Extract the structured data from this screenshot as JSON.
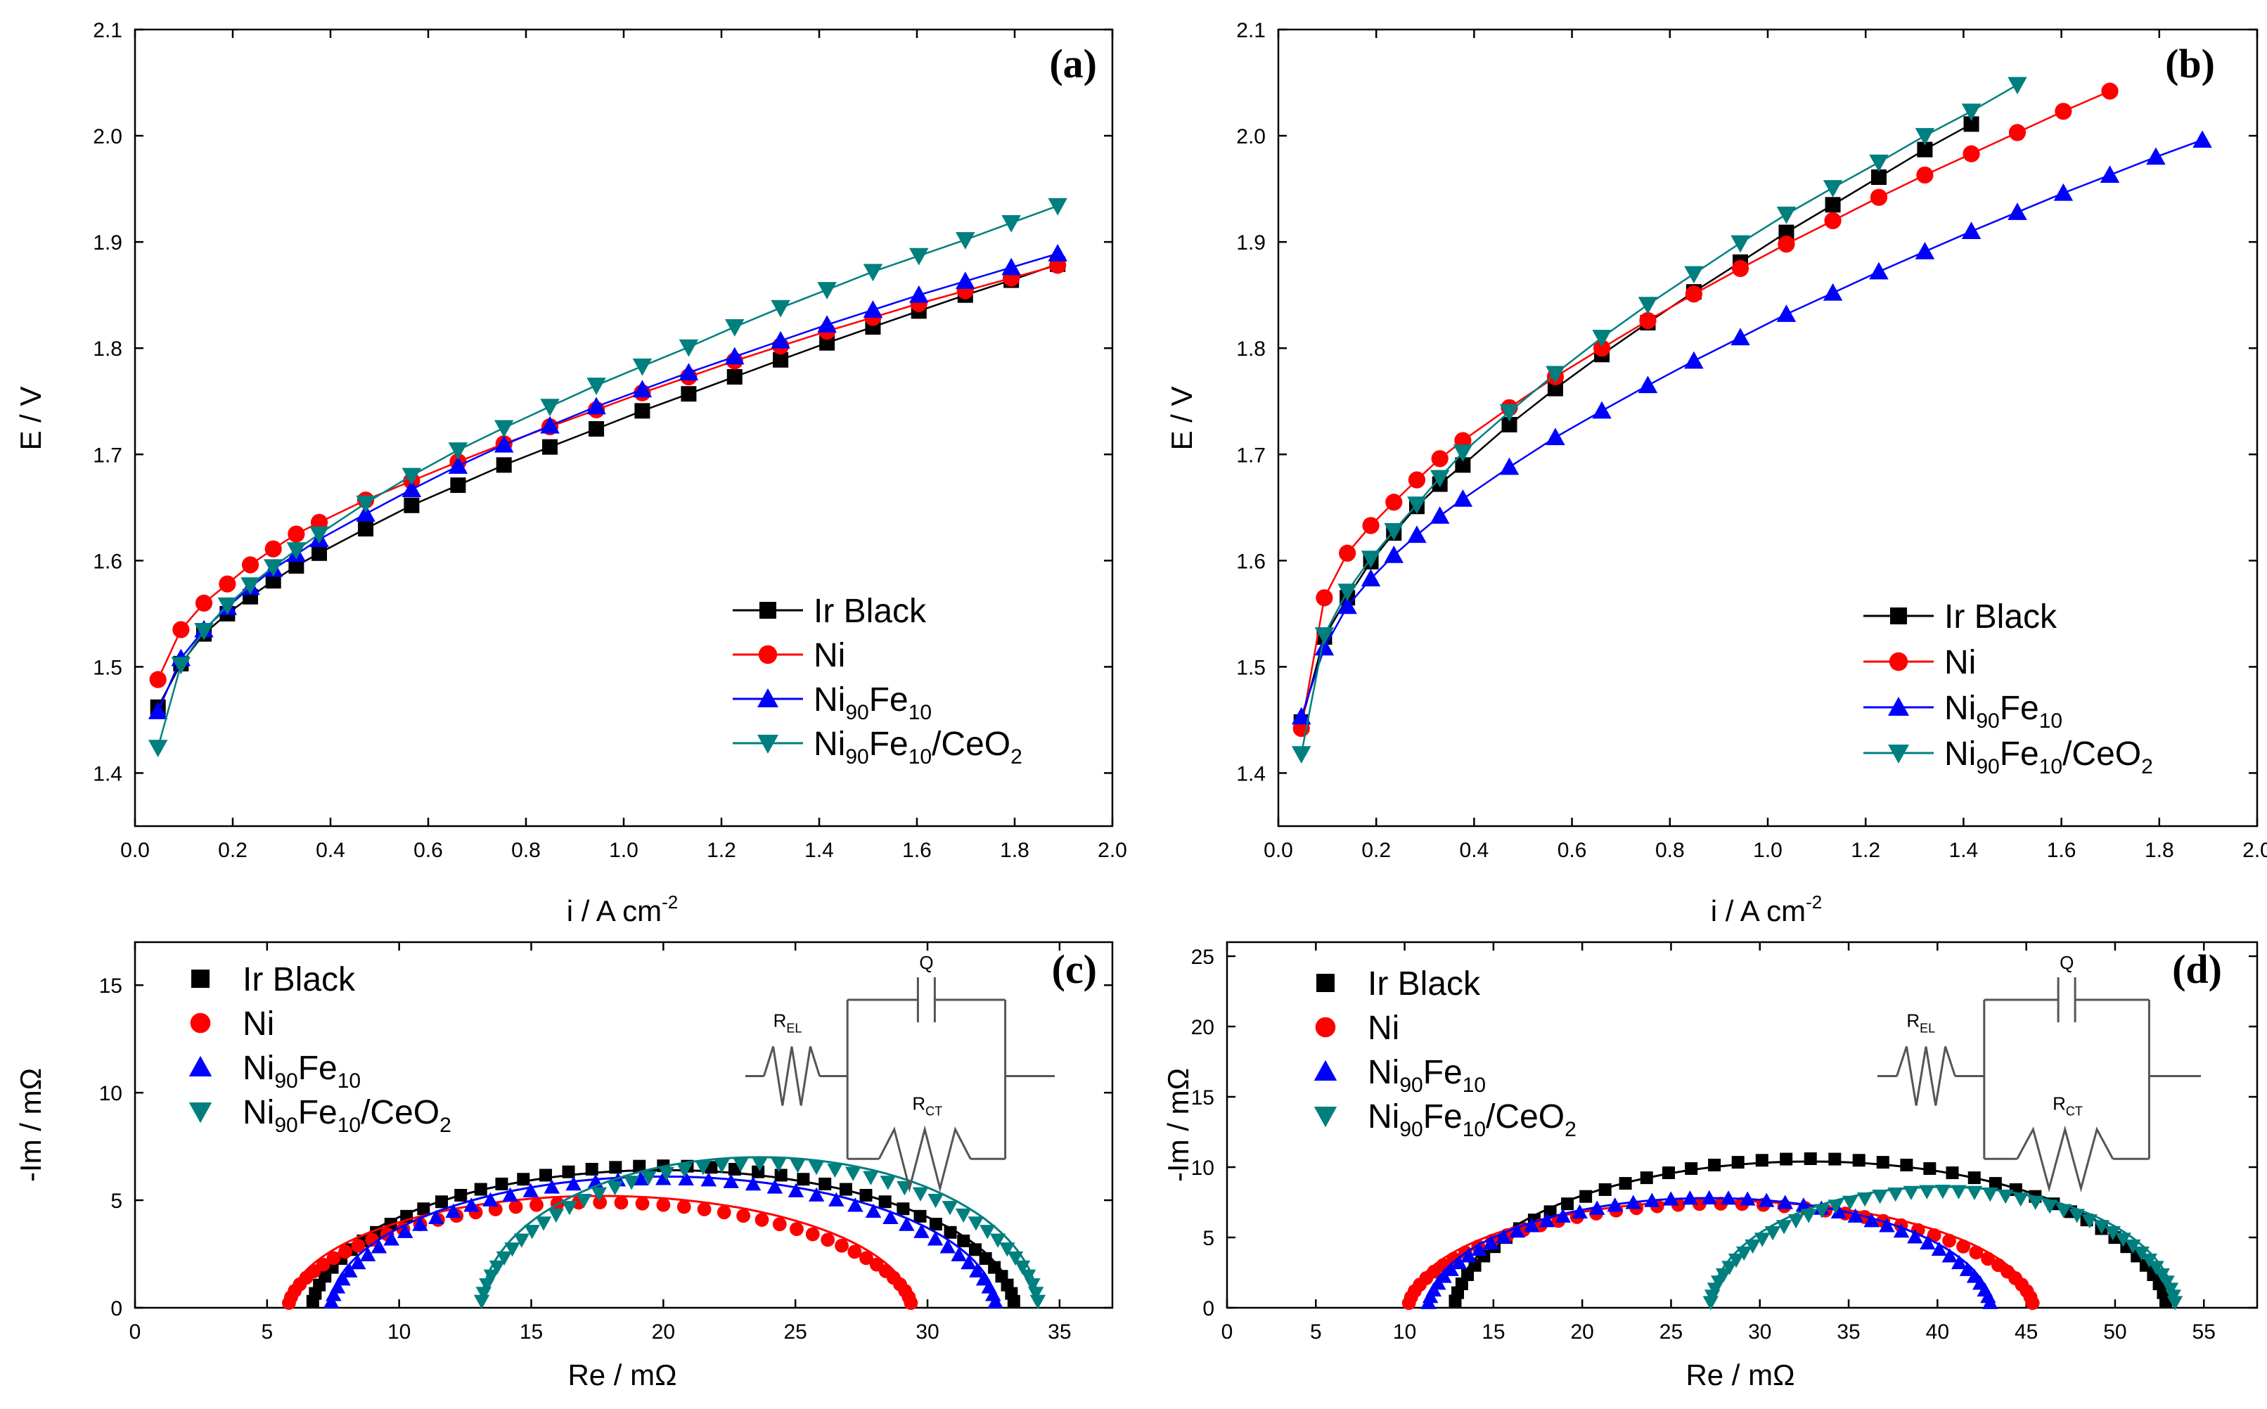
{
  "colors": {
    "ir_black": "#000000",
    "ni": "#ff0000",
    "nife": "#0000ff",
    "nifeceo2": "#007f7f"
  },
  "chart_data": [
    {
      "id": "a",
      "type": "line",
      "panel_label": "(a)",
      "xlabel": "i / A cm",
      "xlabel_sup": "-2",
      "ylabel": "E / V",
      "xlim": [
        0.0,
        2.0
      ],
      "ylim": [
        1.35,
        2.1
      ],
      "xticks": [
        0.0,
        0.2,
        0.4,
        0.6,
        0.8,
        1.0,
        1.2,
        1.4,
        1.6,
        1.8,
        2.0
      ],
      "xtick_labels": [
        "0.0",
        "0.2",
        "0.4",
        "0.6",
        "0.8",
        "1.0",
        "1.2",
        "1.4",
        "1.6",
        "1.8",
        "2.0"
      ],
      "yticks": [
        1.4,
        1.5,
        1.6,
        1.7,
        1.8,
        1.9,
        2.0,
        2.1
      ],
      "ytick_labels": [
        "1.4",
        "1.5",
        "1.6",
        "1.7",
        "1.8",
        "1.9",
        "2.0",
        "2.1"
      ],
      "legend_position": "bottom-right",
      "series": [
        {
          "name": "Ir Black",
          "marker": "square",
          "x": [
            0.047,
            0.094,
            0.141,
            0.189,
            0.236,
            0.283,
            0.33,
            0.377,
            0.472,
            0.566,
            0.661,
            0.755,
            0.849,
            0.944,
            1.038,
            1.133,
            1.227,
            1.321,
            1.416,
            1.51,
            1.604,
            1.699,
            1.793,
            1.888
          ],
          "y": [
            1.462,
            1.503,
            1.531,
            1.55,
            1.566,
            1.581,
            1.595,
            1.607,
            1.63,
            1.652,
            1.671,
            1.69,
            1.707,
            1.724,
            1.741,
            1.757,
            1.773,
            1.789,
            1.805,
            1.82,
            1.835,
            1.85,
            1.864,
            1.879
          ]
        },
        {
          "name": "Ni",
          "marker": "circle",
          "x": [
            0.047,
            0.094,
            0.141,
            0.189,
            0.236,
            0.283,
            0.33,
            0.377,
            0.472,
            0.566,
            0.661,
            0.755,
            0.849,
            0.944,
            1.038,
            1.133,
            1.227,
            1.321,
            1.416,
            1.51,
            1.604,
            1.699,
            1.793,
            1.888
          ],
          "y": [
            1.488,
            1.535,
            1.56,
            1.578,
            1.596,
            1.611,
            1.625,
            1.636,
            1.657,
            1.675,
            1.693,
            1.71,
            1.726,
            1.742,
            1.758,
            1.773,
            1.788,
            1.802,
            1.816,
            1.829,
            1.842,
            1.854,
            1.866,
            1.878
          ]
        },
        {
          "name": "Ni90Fe10",
          "marker": "triangle-up",
          "x": [
            0.047,
            0.094,
            0.141,
            0.189,
            0.236,
            0.283,
            0.33,
            0.377,
            0.472,
            0.566,
            0.661,
            0.755,
            0.849,
            0.944,
            1.038,
            1.133,
            1.227,
            1.321,
            1.416,
            1.51,
            1.604,
            1.699,
            1.793,
            1.888
          ],
          "y": [
            1.458,
            1.508,
            1.535,
            1.556,
            1.575,
            1.592,
            1.606,
            1.62,
            1.644,
            1.667,
            1.689,
            1.709,
            1.727,
            1.745,
            1.761,
            1.777,
            1.792,
            1.807,
            1.822,
            1.836,
            1.85,
            1.863,
            1.876,
            1.889
          ]
        },
        {
          "name": "Ni90Fe10/CeO2",
          "marker": "triangle-down",
          "x": [
            0.047,
            0.094,
            0.141,
            0.189,
            0.236,
            0.283,
            0.33,
            0.377,
            0.472,
            0.566,
            0.661,
            0.755,
            0.849,
            0.944,
            1.038,
            1.133,
            1.227,
            1.321,
            1.416,
            1.51,
            1.604,
            1.699,
            1.793,
            1.888
          ],
          "y": [
            1.424,
            1.502,
            1.534,
            1.558,
            1.577,
            1.594,
            1.61,
            1.625,
            1.654,
            1.68,
            1.704,
            1.725,
            1.745,
            1.765,
            1.783,
            1.801,
            1.82,
            1.838,
            1.855,
            1.872,
            1.887,
            1.902,
            1.918,
            1.934
          ]
        }
      ]
    },
    {
      "id": "b",
      "type": "line",
      "panel_label": "(b)",
      "xlabel": "i / A cm",
      "xlabel_sup": "-2",
      "ylabel": "E / V",
      "xlim": [
        0.0,
        2.0
      ],
      "ylim": [
        1.35,
        2.1
      ],
      "xticks": [
        0.0,
        0.2,
        0.4,
        0.6,
        0.8,
        1.0,
        1.2,
        1.4,
        1.6,
        1.8,
        2.0
      ],
      "xtick_labels": [
        "0.0",
        "0.2",
        "0.4",
        "0.6",
        "0.8",
        "1.0",
        "1.2",
        "1.4",
        "1.6",
        "1.8",
        "2.0"
      ],
      "yticks": [
        1.4,
        1.5,
        1.6,
        1.7,
        1.8,
        1.9,
        2.0,
        2.1
      ],
      "ytick_labels": [
        "1.4",
        "1.5",
        "1.6",
        "1.7",
        "1.8",
        "1.9",
        "2.0",
        "2.1"
      ],
      "legend_position": "bottom-right",
      "series": [
        {
          "name": "Ir Black",
          "marker": "square",
          "x": [
            0.047,
            0.094,
            0.141,
            0.189,
            0.236,
            0.283,
            0.33,
            0.377,
            0.472,
            0.566,
            0.661,
            0.755,
            0.849,
            0.944,
            1.038,
            1.133,
            1.227,
            1.321,
            1.416
          ],
          "y": [
            1.448,
            1.528,
            1.565,
            1.599,
            1.626,
            1.651,
            1.672,
            1.69,
            1.728,
            1.762,
            1.794,
            1.824,
            1.853,
            1.881,
            1.909,
            1.935,
            1.961,
            1.987,
            2.011
          ]
        },
        {
          "name": "Ni",
          "marker": "circle",
          "x": [
            0.047,
            0.094,
            0.141,
            0.189,
            0.236,
            0.283,
            0.33,
            0.377,
            0.472,
            0.566,
            0.661,
            0.755,
            0.849,
            0.944,
            1.038,
            1.133,
            1.227,
            1.321,
            1.416,
            1.51,
            1.604,
            1.699
          ],
          "y": [
            1.442,
            1.565,
            1.607,
            1.633,
            1.655,
            1.676,
            1.696,
            1.713,
            1.744,
            1.773,
            1.8,
            1.826,
            1.851,
            1.875,
            1.898,
            1.92,
            1.942,
            1.963,
            1.983,
            2.003,
            2.023,
            2.042
          ]
        },
        {
          "name": "Ni90Fe10",
          "marker": "triangle-up",
          "x": [
            0.047,
            0.094,
            0.141,
            0.189,
            0.236,
            0.283,
            0.33,
            0.377,
            0.472,
            0.566,
            0.661,
            0.755,
            0.849,
            0.944,
            1.038,
            1.133,
            1.227,
            1.321,
            1.416,
            1.51,
            1.604,
            1.699,
            1.793,
            1.888
          ],
          "y": [
            1.453,
            1.518,
            1.557,
            1.583,
            1.605,
            1.624,
            1.642,
            1.658,
            1.688,
            1.716,
            1.741,
            1.765,
            1.788,
            1.81,
            1.832,
            1.852,
            1.872,
            1.891,
            1.91,
            1.928,
            1.946,
            1.963,
            1.98,
            1.996
          ]
        },
        {
          "name": "Ni90Fe10/CeO2",
          "marker": "triangle-down",
          "x": [
            0.047,
            0.094,
            0.141,
            0.189,
            0.236,
            0.283,
            0.33,
            0.377,
            0.472,
            0.566,
            0.661,
            0.755,
            0.849,
            0.944,
            1.038,
            1.133,
            1.227,
            1.321,
            1.416,
            1.51
          ],
          "y": [
            1.418,
            1.53,
            1.571,
            1.602,
            1.628,
            1.653,
            1.678,
            1.702,
            1.74,
            1.776,
            1.81,
            1.841,
            1.87,
            1.899,
            1.926,
            1.951,
            1.975,
            2.0,
            2.023,
            2.048
          ]
        }
      ]
    },
    {
      "id": "c",
      "type": "scatter",
      "panel_label": "(c)",
      "xlabel": "Re / mΩ",
      "ylabel": "-Im / mΩ",
      "xlim": [
        0,
        37
      ],
      "ylim": [
        0,
        17
      ],
      "xticks": [
        0,
        5,
        10,
        15,
        20,
        25,
        30,
        35
      ],
      "xtick_labels": [
        "0",
        "5",
        "10",
        "15",
        "20",
        "25",
        "30",
        "35"
      ],
      "yticks": [
        0,
        5,
        10,
        15
      ],
      "ytick_labels": [
        "0",
        "5",
        "10",
        "15"
      ],
      "legend_position": "top-left",
      "circuit_labels": {
        "r_el": "R",
        "r_el_sub": "EL",
        "q": "Q",
        "r_ct": "R",
        "r_ct_sub": "CT"
      },
      "series": [
        {
          "name": "Ir Black",
          "marker": "square",
          "arc": {
            "r_start": 6.7,
            "r_end": 33.3,
            "peak": 6.6,
            "fit_peak": 6.4
          }
        },
        {
          "name": "Ni",
          "marker": "circle",
          "arc": {
            "r_start": 5.8,
            "r_end": 29.4,
            "peak": 4.9,
            "fit_peak": 5.2
          }
        },
        {
          "name": "Ni90Fe10",
          "marker": "triangle-up",
          "arc": {
            "r_start": 7.4,
            "r_end": 32.6,
            "peak": 6.0,
            "fit_peak": 6.1
          }
        },
        {
          "name": "Ni90Fe10/CeO2",
          "marker": "triangle-down",
          "arc": {
            "r_start": 13.1,
            "r_end": 34.2,
            "peak": 6.7,
            "fit_peak": 7.0
          }
        }
      ]
    },
    {
      "id": "d",
      "type": "scatter",
      "panel_label": "(d)",
      "xlabel": "Re / mΩ",
      "ylabel": "-Im / mΩ",
      "xlim": [
        0,
        58
      ],
      "ylim": [
        0,
        26
      ],
      "xticks": [
        0,
        5,
        10,
        15,
        20,
        25,
        30,
        35,
        40,
        45,
        50,
        55
      ],
      "xtick_labels": [
        "0",
        "5",
        "10",
        "15",
        "20",
        "25",
        "30",
        "35",
        "40",
        "45",
        "50",
        "55"
      ],
      "yticks": [
        0,
        5,
        10,
        15,
        20,
        25
      ],
      "ytick_labels": [
        "0",
        "5",
        "10",
        "15",
        "20",
        "25"
      ],
      "legend_position": "top-left",
      "circuit_labels": {
        "r_el": "R",
        "r_el_sub": "EL",
        "q": "Q",
        "r_ct": "R",
        "r_ct_sub": "CT"
      },
      "series": [
        {
          "name": "Ir Black",
          "marker": "square",
          "arc": {
            "r_start": 12.8,
            "r_end": 52.9,
            "peak": 10.6,
            "fit_peak": 10.4
          }
        },
        {
          "name": "Ni",
          "marker": "circle",
          "arc": {
            "r_start": 10.2,
            "r_end": 45.4,
            "peak": 7.4,
            "fit_peak": 7.6
          }
        },
        {
          "name": "Ni90Fe10",
          "marker": "triangle-up",
          "arc": {
            "r_start": 11.3,
            "r_end": 43.0,
            "peak": 7.8,
            "fit_peak": 7.8
          }
        },
        {
          "name": "Ni90Fe10/CeO2",
          "marker": "triangle-down",
          "arc": {
            "r_start": 27.2,
            "r_end": 53.4,
            "peak": 8.3,
            "fit_peak": 8.6
          }
        }
      ]
    }
  ],
  "legend": [
    {
      "text": "Ir Black",
      "base": "Ir Black",
      "sub1": "",
      "mid": "",
      "sub2": "",
      "tail": "",
      "sub3": ""
    },
    {
      "text": "Ni",
      "base": "Ni",
      "sub1": "",
      "mid": "",
      "sub2": "",
      "tail": "",
      "sub3": ""
    },
    {
      "text": "Ni90Fe10",
      "base": "Ni",
      "sub1": "90",
      "mid": "Fe",
      "sub2": "10",
      "tail": "",
      "sub3": ""
    },
    {
      "text": "Ni90Fe10/CeO2",
      "base": "Ni",
      "sub1": "90",
      "mid": "Fe",
      "sub2": "10",
      "tail": "/CeO",
      "sub3": "2"
    }
  ]
}
